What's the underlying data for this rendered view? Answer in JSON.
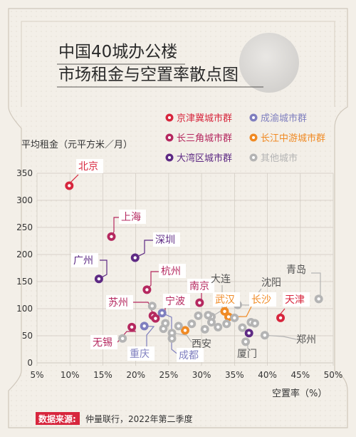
{
  "title_lines": [
    "中国40城办公楼",
    "市场租金与空置率散点图"
  ],
  "source": {
    "label": "数据来源:",
    "text": "仲量联行，2022年第二季度"
  },
  "colors": {
    "background": "#f3efe8",
    "jjj": "#d7263d",
    "cy": "#7f7fbf",
    "csj": "#b5285f",
    "cjzy": "#f08a24",
    "dwq": "#5e2a84",
    "other": "#b4b4b4",
    "source_badge": "#d7263d",
    "grid": "#cfc9c0",
    "axis_text": "#333333"
  },
  "chart_data": {
    "type": "scatter",
    "title": "中国40城办公楼市场租金与空置率散点图",
    "xlabel": "空置率（%）",
    "ylabel": "平均租金（元平方米／月）",
    "xlim": [
      5,
      50
    ],
    "ylim": [
      0,
      350
    ],
    "xticks": [
      5,
      10,
      15,
      20,
      25,
      30,
      35,
      40,
      45,
      50
    ],
    "xtick_labels": [
      "5%",
      "10%",
      "15%",
      "20%",
      "25%",
      "30%",
      "35%",
      "40%",
      "45%",
      "50%"
    ],
    "yticks": [
      0,
      50,
      100,
      150,
      200,
      250,
      300,
      350
    ],
    "grid": true,
    "legend_position": "top-right",
    "series": [
      {
        "key": "jjj",
        "name": "京津冀城市群",
        "color": "#d7263d",
        "points": [
          {
            "label": "北京",
            "x": 9.9,
            "y": 327
          },
          {
            "label": "天津",
            "x": 42.0,
            "y": 83
          }
        ]
      },
      {
        "key": "cy",
        "name": "成渝城市群",
        "color": "#7f7fbf",
        "points": [
          {
            "label": "重庆",
            "x": 21.3,
            "y": 68
          },
          {
            "label": "成都",
            "x": 24.0,
            "y": 92
          }
        ]
      },
      {
        "key": "csj",
        "name": "长三角城市群",
        "color": "#b5285f",
        "points": [
          {
            "label": "上海",
            "x": 16.3,
            "y": 233
          },
          {
            "label": "杭州",
            "x": 21.7,
            "y": 135
          },
          {
            "label": "苏州",
            "x": 22.6,
            "y": 87
          },
          {
            "label": "南京",
            "x": 29.7,
            "y": 111
          },
          {
            "label": "无锡",
            "x": 19.4,
            "y": 66
          },
          {
            "label": "宁波",
            "x": 23.0,
            "y": 82
          }
        ]
      },
      {
        "key": "cjzy",
        "name": "长江中游城市群",
        "color": "#f08a24",
        "points": [
          {
            "label": "武汉",
            "x": 33.5,
            "y": 95
          },
          {
            "label": "长沙",
            "x": 34.1,
            "y": 85
          },
          {
            "label": "",
            "x": 27.5,
            "y": 60
          }
        ]
      },
      {
        "key": "dwq",
        "name": "大湾区城市群",
        "color": "#5e2a84",
        "points": [
          {
            "label": "深圳",
            "x": 19.9,
            "y": 194
          },
          {
            "label": "广州",
            "x": 14.4,
            "y": 155
          },
          {
            "label": "",
            "x": 37.2,
            "y": 55
          }
        ]
      },
      {
        "key": "other",
        "name": "其他城市",
        "color": "#b4b4b4",
        "points": [
          {
            "label": "西安",
            "x": 25.5,
            "y": 55
          },
          {
            "label": "大连",
            "x": 31.5,
            "y": 85
          },
          {
            "label": "沈阳",
            "x": 35.5,
            "y": 107
          },
          {
            "label": "青岛",
            "x": 47.8,
            "y": 118
          },
          {
            "label": "郑州",
            "x": 39.6,
            "y": 51
          },
          {
            "label": "厦门",
            "x": 36.7,
            "y": 39
          },
          {
            "label": "",
            "x": 18.0,
            "y": 45
          },
          {
            "label": "",
            "x": 22.5,
            "y": 105
          },
          {
            "label": "",
            "x": 24.2,
            "y": 63
          },
          {
            "label": "",
            "x": 24.5,
            "y": 73
          },
          {
            "label": "",
            "x": 25.5,
            "y": 45
          },
          {
            "label": "",
            "x": 26.5,
            "y": 68
          },
          {
            "label": "",
            "x": 28.5,
            "y": 72
          },
          {
            "label": "",
            "x": 29.5,
            "y": 87
          },
          {
            "label": "",
            "x": 30.5,
            "y": 62
          },
          {
            "label": "",
            "x": 31.0,
            "y": 88
          },
          {
            "label": "",
            "x": 31.5,
            "y": 75
          },
          {
            "label": "",
            "x": 32.5,
            "y": 66
          },
          {
            "label": "",
            "x": 33.8,
            "y": 72
          },
          {
            "label": "",
            "x": 35.0,
            "y": 83
          },
          {
            "label": "",
            "x": 36.2,
            "y": 65
          },
          {
            "label": "",
            "x": 37.5,
            "y": 75
          },
          {
            "label": "",
            "x": 38.1,
            "y": 73
          }
        ]
      }
    ]
  }
}
